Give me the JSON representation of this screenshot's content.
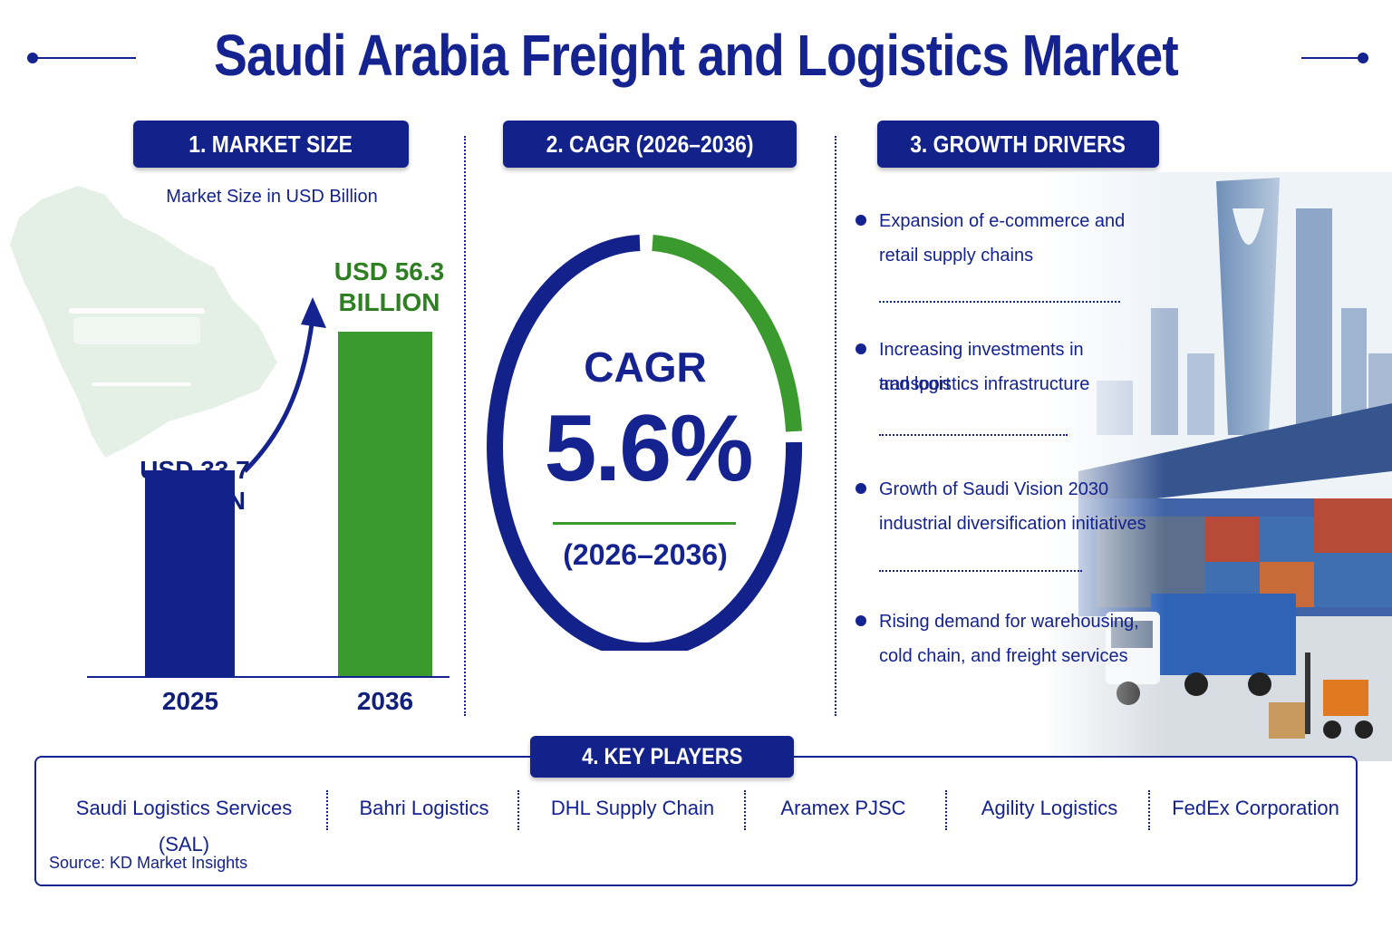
{
  "title": "Saudi Arabia Freight and Logistics Market",
  "sections": {
    "market_size": "1. MARKET SIZE",
    "cagr": "2. CAGR (2026–2036)",
    "growth_drivers": "3. GROWTH DRIVERS",
    "key_players": "4. KEY PLAYERS"
  },
  "market_size": {
    "subtitle": "Market Size in USD Billion",
    "bars": [
      {
        "year": "2025",
        "label_line1": "USD 33.7",
        "label_line2": "BILLION",
        "value": 33.7,
        "color": "#13228a"
      },
      {
        "year": "2036",
        "label_line1": "USD 56.3",
        "label_line2": "BILLION",
        "value": 56.3,
        "color": "#3a9a2e"
      }
    ]
  },
  "cagr": {
    "label": "CAGR",
    "value": "5.6%",
    "period": "(2026–2036)",
    "ring_fraction": 0.5
  },
  "drivers": [
    {
      "line1": "Expansion of e-commerce and",
      "line2": "retail supply chains"
    },
    {
      "line1": "Increasing investments in transport",
      "line2": "and logistics infrastructure"
    },
    {
      "line1": "Growth of Saudi Vision 2030",
      "line2": "industrial diversification initiatives"
    },
    {
      "line1": "Rising demand for warehousing,",
      "line2": "cold chain, and freight services"
    }
  ],
  "players": [
    "Saudi Logistics Services (SAL)",
    "Bahri Logistics",
    "DHL Supply Chain",
    "Aramex PJSC",
    "Agility Logistics",
    "FedEx Corporation"
  ],
  "source": "Source: KD Market Insights",
  "colors": {
    "navy": "#13228a",
    "green": "#3a9a2e"
  }
}
